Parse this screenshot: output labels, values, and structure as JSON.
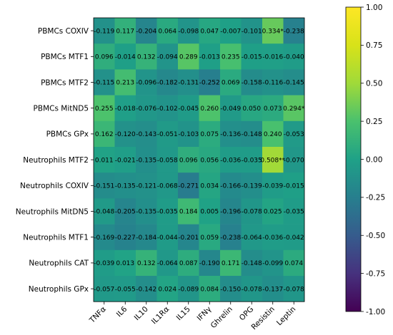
{
  "chart_data": {
    "type": "heatmap",
    "title": "",
    "xlabel": "",
    "ylabel": "",
    "colormap": "viridis",
    "value_range": [
      -1.0,
      1.0
    ],
    "colorbar_ticks": [
      "1.00",
      "0.75",
      "0.50",
      "0.25",
      "0.00",
      "-0.25",
      "-0.50",
      "-0.75",
      "-1.00"
    ],
    "columns": [
      "TNFα",
      "IL6",
      "IL10",
      "IL1Rα",
      "IL15",
      "IFNγ",
      "Ghrelin",
      "OPG",
      "Resistin",
      "Leptin"
    ],
    "rows": [
      "PBMCs COXIV",
      "PBMCs MTF1",
      "PBMCs MTF2",
      "PBMCs MitND5",
      "PBMCs GPx",
      "Neutrophils MTF2",
      "Neutrophils COXIV",
      "Neutrophils MitDN5",
      "Neutrophils MTF1",
      "Neutrophils CAT",
      "Neutrophils GPx"
    ],
    "values": [
      [
        -0.119,
        0.117,
        -0.204,
        0.064,
        -0.098,
        0.047,
        -0.007,
        -0.101,
        0.334,
        -0.238
      ],
      [
        0.096,
        -0.014,
        0.132,
        -0.094,
        0.289,
        -0.013,
        0.235,
        -0.015,
        -0.016,
        -0.04
      ],
      [
        -0.115,
        0.213,
        -0.096,
        -0.182,
        -0.131,
        -0.252,
        0.069,
        -0.158,
        -0.116,
        -0.145
      ],
      [
        0.255,
        -0.018,
        -0.076,
        -0.102,
        -0.045,
        0.26,
        -0.049,
        0.05,
        0.073,
        0.294
      ],
      [
        0.162,
        -0.12,
        -0.143,
        -0.051,
        -0.103,
        0.075,
        -0.136,
        -0.148,
        0.24,
        -0.053
      ],
      [
        0.011,
        -0.021,
        -0.135,
        -0.058,
        0.096,
        0.056,
        -0.036,
        -0.035,
        0.508,
        -0.07
      ],
      [
        -0.151,
        -0.135,
        -0.121,
        -0.068,
        -0.271,
        0.034,
        -0.166,
        -0.139,
        -0.039,
        -0.015
      ],
      [
        -0.048,
        -0.205,
        -0.135,
        -0.035,
        0.184,
        0.005,
        -0.196,
        -0.078,
        0.025,
        -0.035
      ],
      [
        -0.169,
        -0.227,
        -0.184,
        -0.044,
        -0.201,
        0.059,
        -0.238,
        -0.064,
        -0.036,
        -0.042
      ],
      [
        -0.039,
        0.013,
        0.132,
        -0.064,
        0.087,
        -0.19,
        0.171,
        -0.148,
        -0.099,
        0.074
      ],
      [
        -0.057,
        -0.055,
        -0.142,
        0.024,
        -0.089,
        0.084,
        -0.15,
        -0.078,
        -0.137,
        -0.078
      ]
    ],
    "labels": [
      [
        "-0.119",
        "0.117",
        "-0.204",
        "0.064",
        "-0.098",
        "0.047",
        "-0.007",
        "-0.101",
        "0.334*",
        "-0.238"
      ],
      [
        "0.096",
        "-0.014",
        "0.132",
        "-0.094",
        "0.289",
        "-0.013",
        "0.235",
        "-0.015",
        "-0.016",
        "-0.040"
      ],
      [
        "-0.115",
        "0.213",
        "-0.096",
        "-0.182",
        "-0.131",
        "-0.252",
        "0.069",
        "-0.158",
        "-0.116",
        "-0.145"
      ],
      [
        "0.255",
        "-0.018",
        "-0.076",
        "-0.102",
        "-0.045",
        "0.260",
        "-0.049",
        "0.050",
        "0.073",
        "0.294*"
      ],
      [
        "0.162",
        "-0.120",
        "-0.143",
        "-0.051",
        "-0.103",
        "0.075",
        "-0.136",
        "-0.148",
        "0.240",
        "-0.053"
      ],
      [
        "0.011",
        "-0.021",
        "-0.135",
        "-0.058",
        "0.096",
        "0.056",
        "-0.036",
        "-0.035",
        "0.508**",
        "-0.070"
      ],
      [
        "-0.151",
        "-0.135",
        "-0.121",
        "-0.068",
        "-0.271",
        "0.034",
        "-0.166",
        "-0.139",
        "-0.039",
        "-0.015"
      ],
      [
        "-0.048",
        "-0.205",
        "-0.135",
        "-0.035",
        "0.184",
        "0.005",
        "-0.196",
        "-0.078",
        "0.025",
        "-0.035"
      ],
      [
        "-0.169",
        "-0.227",
        "-0.184",
        "-0.044",
        "-0.201",
        "0.059",
        "-0.238",
        "-0.064",
        "-0.036",
        "-0.042"
      ],
      [
        "-0.039",
        "0.013",
        "0.132",
        "-0.064",
        "0.087",
        "-0.190",
        "0.171",
        "-0.148",
        "-0.099",
        "0.074"
      ],
      [
        "-0.057",
        "-0.055",
        "-0.142",
        "0.024",
        "-0.089",
        "0.084",
        "-0.150",
        "-0.078",
        "-0.137",
        "-0.078"
      ]
    ]
  }
}
